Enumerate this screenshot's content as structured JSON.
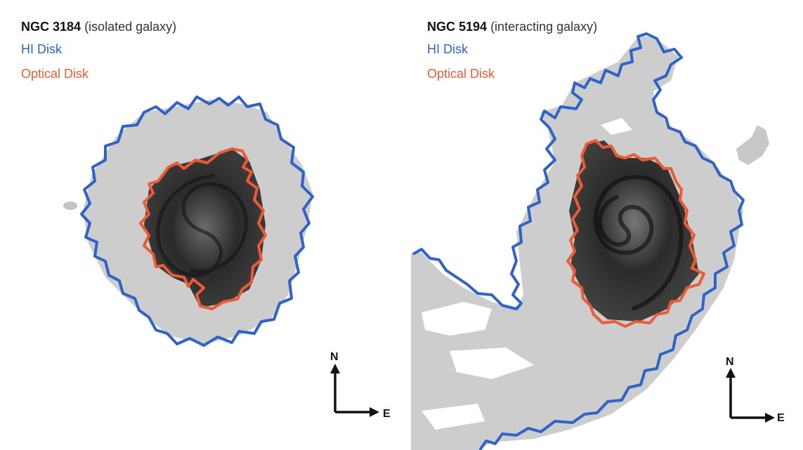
{
  "panels": [
    {
      "name": "NGC 3184",
      "description": "(isolated galaxy)"
    },
    {
      "name": "NGC 5194",
      "description": "(interacting galaxy)"
    }
  ],
  "legend": {
    "hi_disk": "HI Disk",
    "optical_disk": "Optical Disk"
  },
  "compass": {
    "north": "N",
    "east": "E"
  },
  "colors": {
    "hi_disk": "#2f63c8",
    "optical_disk": "#ee5a33",
    "hi_emission": "#cfcfcf",
    "optical_emission": "#1c1c1c"
  }
}
